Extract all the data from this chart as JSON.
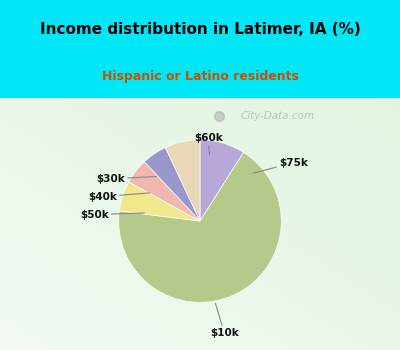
{
  "title": "Income distribution in Latimer, IA (%)",
  "subtitle": "Hispanic or Latino residents",
  "slices": [
    {
      "label": "$75k",
      "value": 9,
      "color": "#b8a8d8"
    },
    {
      "label": "$10k",
      "value": 68,
      "color": "#b5c98a"
    },
    {
      "label": "$50k",
      "value": 6,
      "color": "#f0e88a"
    },
    {
      "label": "$40k",
      "value": 5,
      "color": "#f0b8b0"
    },
    {
      "label": "$30k",
      "value": 5,
      "color": "#9898cc"
    },
    {
      "label": "$60k",
      "value": 7,
      "color": "#e8d8b8"
    }
  ],
  "bg_color_top": "#00e8f8",
  "chart_bg": "#e2f4e2",
  "title_color": "#000000",
  "subtitle_color": "#c85000",
  "watermark": "City-Data.com",
  "startangle": 90
}
